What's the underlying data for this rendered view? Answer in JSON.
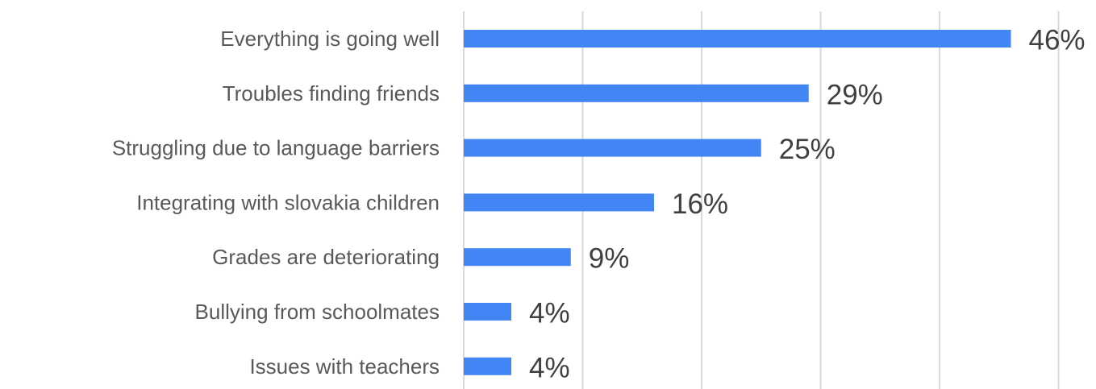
{
  "chart_data": {
    "type": "bar",
    "orientation": "horizontal",
    "categories": [
      "Everything is going well",
      "Troubles finding friends",
      "Struggling due to language barriers",
      "Integrating with slovakia children",
      "Grades are deteriorating",
      "Bullying from schoolmates",
      "Issues with teachers"
    ],
    "values": [
      46,
      29,
      25,
      16,
      9,
      4,
      4
    ],
    "data_labels": [
      "46%",
      "29%",
      "25%",
      "16%",
      "9%",
      "4%",
      "4%"
    ],
    "unit": "%",
    "xlim": [
      0,
      50
    ],
    "xticks": [
      0,
      10,
      20,
      30,
      40,
      50
    ],
    "grid": true,
    "legend": "none",
    "title": "",
    "xlabel": "",
    "ylabel": "",
    "bar_color": "#4285f4",
    "gridline_color": "#d9d9d9",
    "label_color": "#595959",
    "data_label_color": "#404040"
  }
}
